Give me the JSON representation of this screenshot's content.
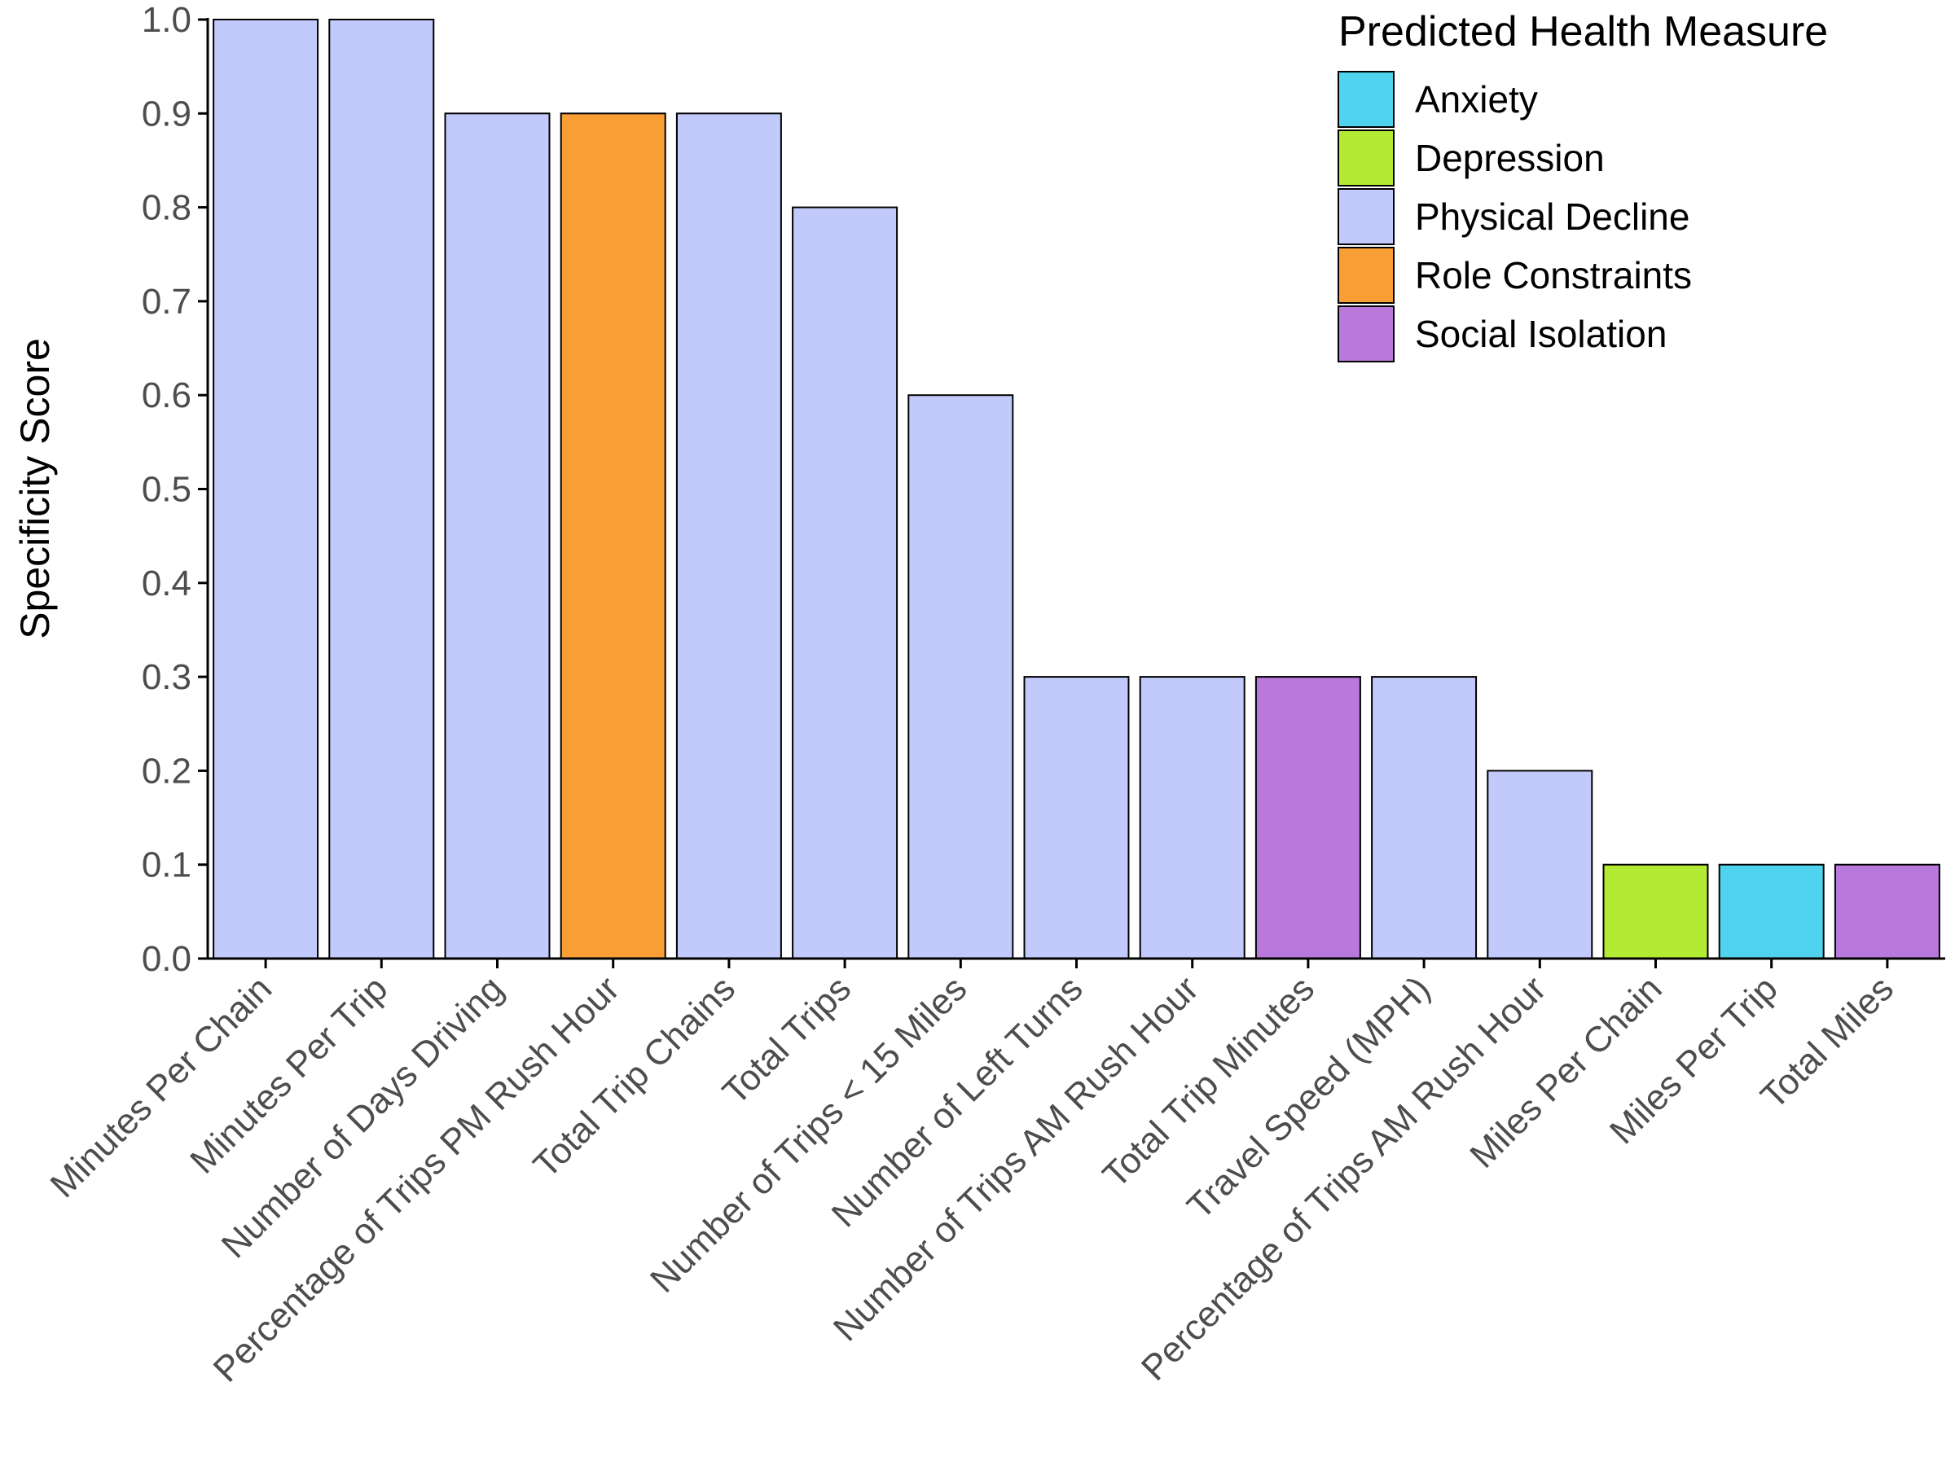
{
  "chart_data": {
    "type": "bar",
    "title": "",
    "xlabel": "",
    "ylabel": "Specificity Score",
    "ylim": [
      0,
      1
    ],
    "yticks": [
      "0.0",
      "0.1",
      "0.2",
      "0.3",
      "0.4",
      "0.5",
      "0.6",
      "0.7",
      "0.8",
      "0.9",
      "1.0"
    ],
    "grid": false,
    "legend": {
      "title": "Predicted Health Measure",
      "placement": "top-right",
      "entries": [
        {
          "name": "Anxiety",
          "color": "#4fd3ee"
        },
        {
          "name": "Depression",
          "color": "#b3ea34"
        },
        {
          "name": "Physical Decline",
          "color": "#c2cafb"
        },
        {
          "name": "Role Constraints",
          "color": "#f99d35"
        },
        {
          "name": "Social Isolation",
          "color": "#b978db"
        }
      ]
    },
    "categories": [
      "Minutes Per Chain",
      "Minutes Per Trip",
      "Number of Days Driving",
      "Percentage of Trips PM Rush Hour",
      "Total Trip Chains",
      "Total Trips",
      "Number of Trips < 15 Miles",
      "Number of Left Turns",
      "Number of Trips AM Rush Hour",
      "Total Trip Minutes",
      "Travel Speed (MPH)",
      "Percentage of Trips AM Rush Hour",
      "Miles Per Chain",
      "Miles Per Trip",
      "Total Miles"
    ],
    "values": [
      1.0,
      1.0,
      0.9,
      0.9,
      0.9,
      0.8,
      0.6,
      0.3,
      0.3,
      0.3,
      0.3,
      0.2,
      0.1,
      0.1,
      0.1
    ],
    "groups": [
      "Physical Decline",
      "Physical Decline",
      "Physical Decline",
      "Role Constraints",
      "Physical Decline",
      "Physical Decline",
      "Physical Decline",
      "Physical Decline",
      "Physical Decline",
      "Social Isolation",
      "Physical Decline",
      "Physical Decline",
      "Depression",
      "Anxiety",
      "Social Isolation"
    ]
  }
}
